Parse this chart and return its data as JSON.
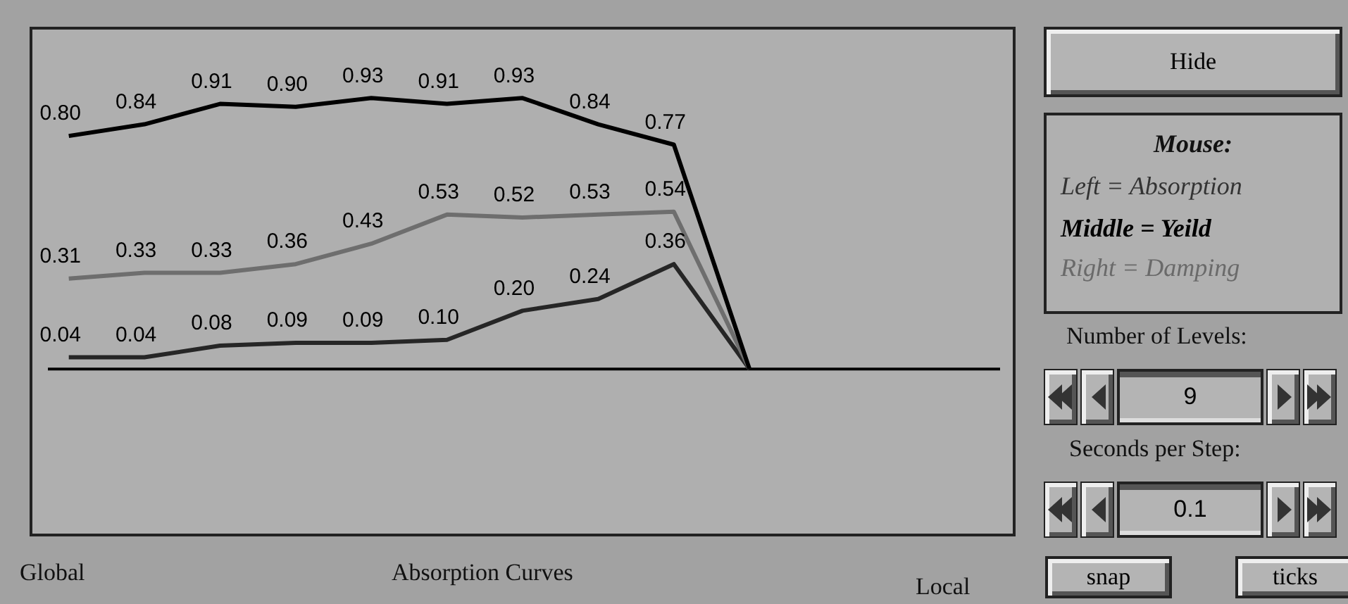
{
  "chart_data": {
    "type": "line",
    "xlabel": "Absorption Curves",
    "categories": [
      null,
      null,
      null,
      null,
      null,
      null,
      null,
      null,
      null,
      null,
      null,
      null,
      null
    ],
    "series": [
      {
        "color": "#000000",
        "values": [
          0.8,
          0.84,
          0.91,
          0.9,
          0.93,
          0.91,
          0.93,
          0.84,
          0.77,
          0,
          null,
          null,
          null
        ],
        "value_labels": [
          "0.80",
          "0.84",
          "0.91",
          "0.90",
          "0.93",
          "0.91",
          "0.93",
          "0.84",
          "0.77",
          null,
          null,
          null,
          null
        ]
      },
      {
        "color": "#6e6e6e",
        "values": [
          0.31,
          0.33,
          0.33,
          0.36,
          0.43,
          0.53,
          0.52,
          0.53,
          0.54,
          0,
          null,
          null,
          null
        ],
        "value_labels": [
          "0.31",
          "0.33",
          "0.33",
          "0.36",
          "0.43",
          "0.53",
          "0.52",
          "0.53",
          "0.54",
          null,
          null,
          null,
          null
        ]
      },
      {
        "color": "#262626",
        "values": [
          0.04,
          0.04,
          0.08,
          0.09,
          0.09,
          0.1,
          0.2,
          0.24,
          0.36,
          0,
          null,
          null,
          null
        ],
        "value_labels": [
          "0.04",
          "0.04",
          "0.08",
          "0.09",
          "0.09",
          "0.10",
          "0.20",
          "0.24",
          "0.36",
          null,
          null,
          null,
          null
        ]
      }
    ],
    "ylim": [
      -0.57,
      1.17
    ],
    "tick_labels": false,
    "grid": false,
    "legend": false,
    "marker": "none",
    "line_style": "solid",
    "ref_lines": [
      {
        "axis": "y",
        "value": 0,
        "color": "#000000"
      }
    ],
    "annotations": [
      "Global",
      "Local",
      "Hide",
      "Mouse:",
      "Left = Absorption",
      "Middle = Yeild",
      "Right = Damping",
      "Number of Levels:",
      "9",
      "Seconds per Step:",
      "0.1",
      "snap",
      "ticks"
    ]
  }
}
